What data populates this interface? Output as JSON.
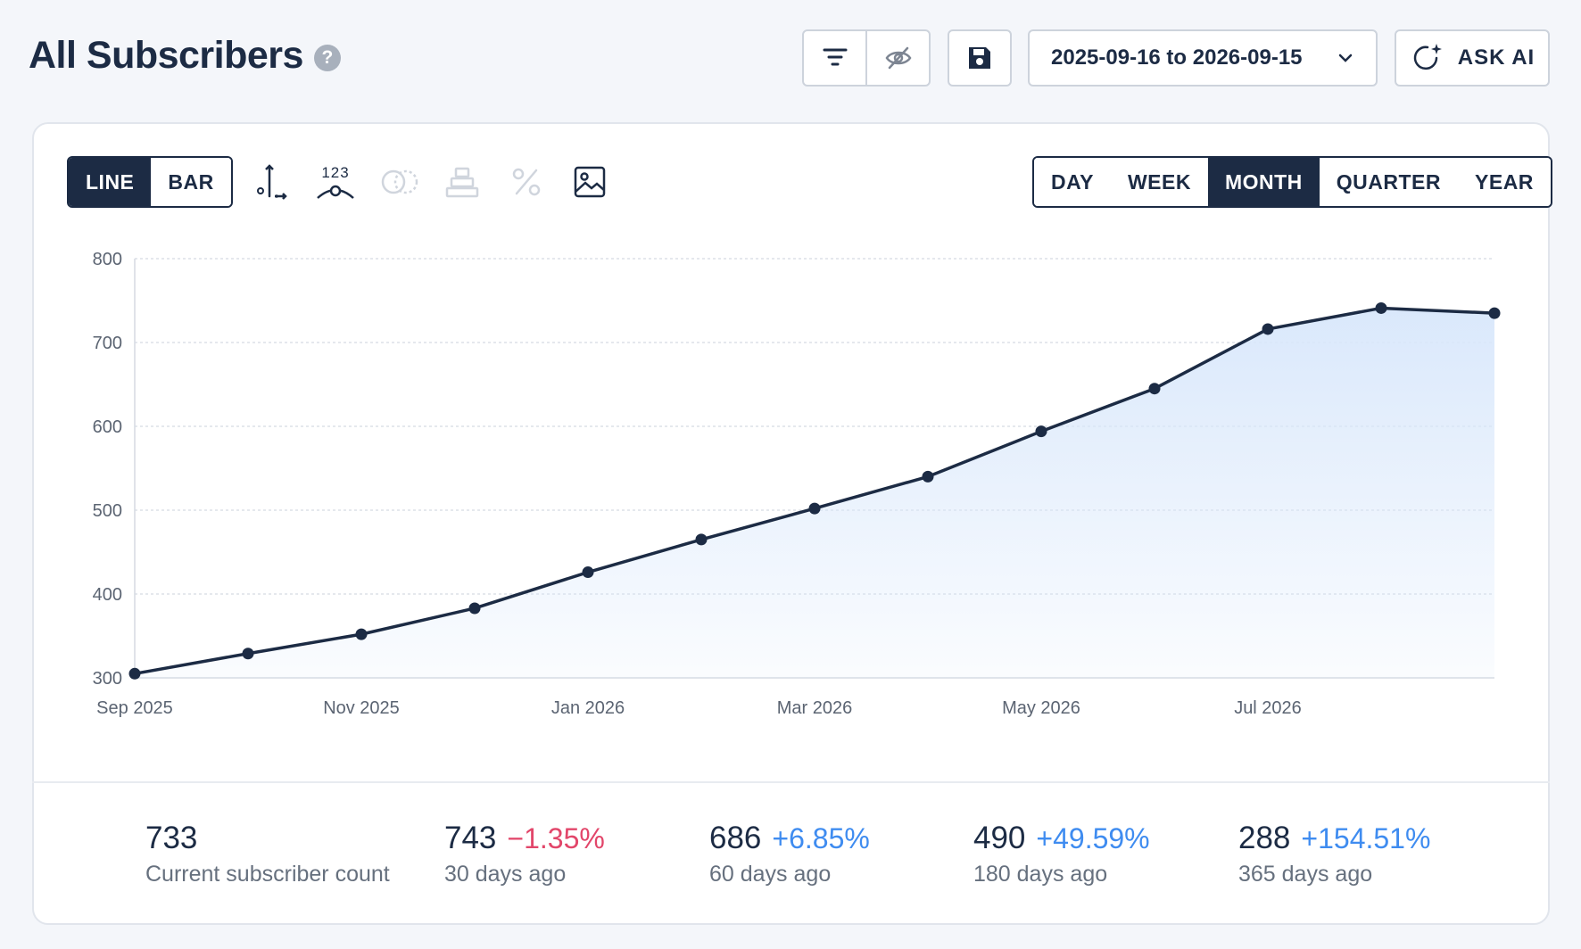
{
  "header": {
    "title": "All Subscribers",
    "date_range": "2025-09-16 to 2026-09-15",
    "ask_ai_label": "ASK AI"
  },
  "chart_type_toggle": [
    {
      "label": "LINE",
      "active": true
    },
    {
      "label": "BAR",
      "active": false
    }
  ],
  "chart_tools": {
    "labels_badge": "123",
    "icons": [
      "axis-icon",
      "data-labels-icon",
      "compare-icon",
      "stack-icon",
      "percent-icon",
      "image-export-icon"
    ]
  },
  "period_toggle": [
    {
      "label": "DAY",
      "active": false
    },
    {
      "label": "WEEK",
      "active": false
    },
    {
      "label": "MONTH",
      "active": true
    },
    {
      "label": "QUARTER",
      "active": false
    },
    {
      "label": "YEAR",
      "active": false
    }
  ],
  "chart_data": {
    "type": "area",
    "x": [
      "Sep 2025",
      "Oct 2025",
      "Nov 2025",
      "Dec 2025",
      "Jan 2026",
      "Feb 2026",
      "Mar 2026",
      "Apr 2026",
      "May 2026",
      "Jun 2026",
      "Jul 2026",
      "Aug 2026",
      "Sep 2026"
    ],
    "values": [
      305,
      329,
      352,
      383,
      426,
      465,
      502,
      540,
      594,
      645,
      716,
      741,
      735
    ],
    "x_tick_labels": [
      "Sep 2025",
      "Nov 2025",
      "Jan 2026",
      "Mar 2026",
      "May 2026",
      "Jul 2026"
    ],
    "y_ticks": [
      300,
      400,
      500,
      600,
      700,
      800
    ],
    "ylim": [
      300,
      800
    ],
    "grid": true,
    "line_color": "#1c2b44",
    "fill_color": "#d8e7fb"
  },
  "stats": [
    {
      "value": "733",
      "change": "",
      "label": "Current subscriber count"
    },
    {
      "value": "743",
      "change": "−1.35%",
      "direction": "neg",
      "label": "30 days ago"
    },
    {
      "value": "686",
      "change": "+6.85%",
      "direction": "pos",
      "label": "60 days ago"
    },
    {
      "value": "490",
      "change": "+49.59%",
      "direction": "pos",
      "label": "180 days ago"
    },
    {
      "value": "288",
      "change": "+154.51%",
      "direction": "pos",
      "label": "365 days ago"
    }
  ]
}
